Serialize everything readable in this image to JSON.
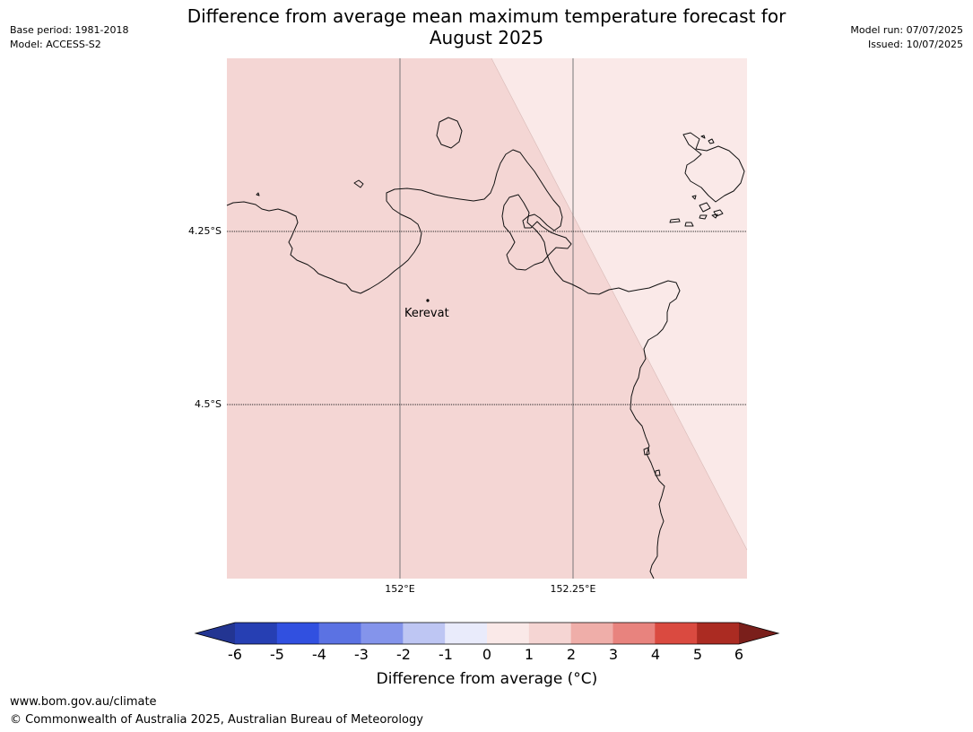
{
  "header": {
    "base_period": "Base period: 1981-2018",
    "model": "Model: ACCESS-S2",
    "model_run": "Model run: 07/07/2025",
    "issued": "Issued: 10/07/2025",
    "title_line1": "Difference from average mean maximum temperature forecast for",
    "title_line2": "August 2025"
  },
  "map": {
    "lat_labels": [
      "4.25°S",
      "4.5°S"
    ],
    "lon_labels": [
      "152°E",
      "152.25°E"
    ],
    "places": [
      {
        "name": "Kerevat"
      }
    ],
    "region_colors": {
      "range_1_to_2": "#f4d6d4",
      "range_0_to_1": "#fae9e8"
    }
  },
  "colorbar": {
    "ticks": [
      "-6",
      "-5",
      "-4",
      "-3",
      "-2",
      "-1",
      "0",
      "1",
      "2",
      "3",
      "4",
      "5",
      "6"
    ],
    "colors": [
      "#233592",
      "#263fb3",
      "#3150e0",
      "#5b72e3",
      "#8494eb",
      "#bec6f3",
      "#e9ebfb",
      "#fae9e8",
      "#f5d5d3",
      "#efaea9",
      "#e8837e",
      "#da4a40",
      "#ab2b22",
      "#7a1f1b"
    ],
    "label": "Difference from average ($^\\circ$C)",
    "label_display": "Difference from average (°C)"
  },
  "footer": {
    "url": "www.bom.gov.au/climate",
    "copyright": "© Commonwealth of Australia 2025, Australian Bureau of Meteorology"
  }
}
